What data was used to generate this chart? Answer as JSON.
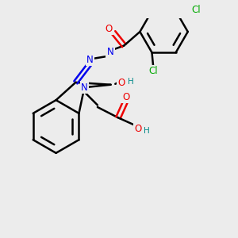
{
  "bg_color": "#ececec",
  "bond_color": "#000000",
  "bond_width": 1.8,
  "atom_colors": {
    "C": "#000000",
    "N": "#0000ee",
    "O": "#ee0000",
    "Cl": "#00aa00",
    "H": "#008888"
  },
  "font_size": 8.5,
  "fig_size": [
    3.0,
    3.0
  ],
  "dpi": 100
}
